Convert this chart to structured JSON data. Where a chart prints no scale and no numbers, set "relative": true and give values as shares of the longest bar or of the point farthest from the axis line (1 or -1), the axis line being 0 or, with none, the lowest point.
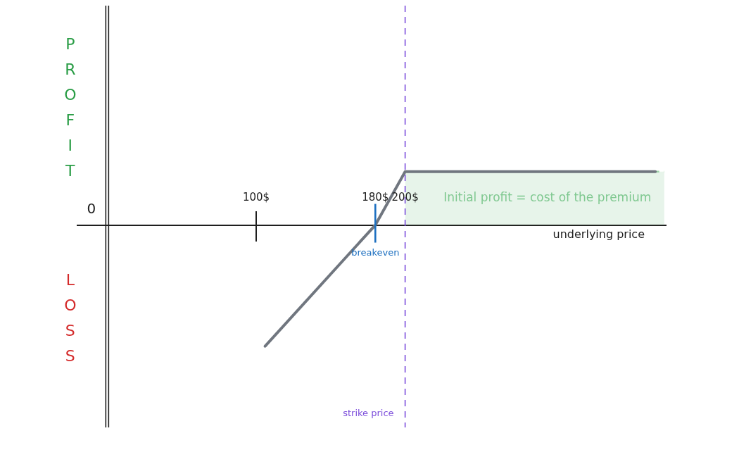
{
  "chart_data": {
    "type": "line",
    "relative": true,
    "xlabel": "underlying price",
    "xlim": [
      -20,
      375
    ],
    "xticks": [
      {
        "value": 100,
        "label": "100$"
      },
      {
        "value": 180,
        "label": "180$"
      },
      {
        "value": 200,
        "label": "200$"
      }
    ],
    "series": [
      {
        "type": "area",
        "color": "#9fd4aa",
        "line_style": "dashed",
        "x": [
          200,
          374
        ],
        "values": [
          0.44,
          0.44
        ]
      },
      {
        "color": "#70767f",
        "x": [
          106,
          180,
          200,
          368
        ],
        "values": [
          -1,
          0,
          0.44,
          0.44
        ]
      }
    ],
    "ref_lines": [
      {
        "axis": "x",
        "value": 200,
        "label": "strike price",
        "color": "#7c4ddb",
        "line_style": "dashed"
      }
    ],
    "annotations": [
      "0",
      {
        "text": "breakeven",
        "x": 180,
        "y": 0
      },
      "Initial profit = cost of the premium",
      "PROFIT",
      "LOSS"
    ]
  }
}
